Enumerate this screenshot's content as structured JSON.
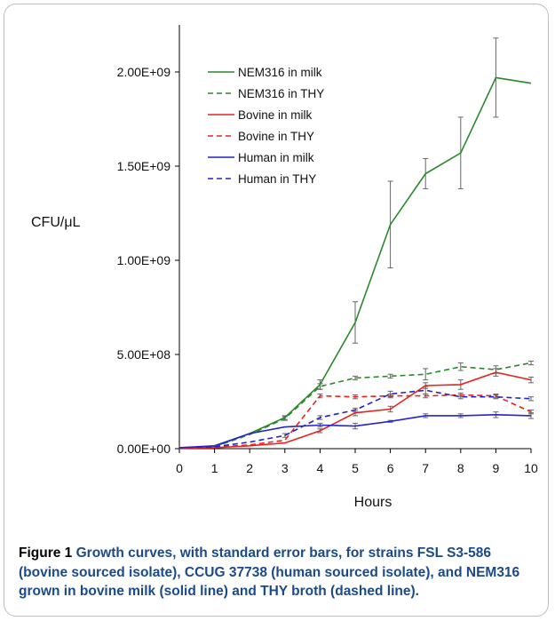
{
  "caption": {
    "label": "Figure 1",
    "text": "Growth curves, with standard error bars, for strains FSL S3-586 (bovine sourced isolate), CCUG 37738 (human sourced isolate), and NEM316 grown in bovine milk (solid line) and THY broth (dashed line)."
  },
  "chart_data": {
    "type": "line",
    "title": "",
    "xlabel": "Hours",
    "ylabel": "CFU/μL",
    "xlim": [
      0,
      10
    ],
    "ylim": [
      0,
      2000000000
    ],
    "x_ticks": [
      "0",
      "1",
      "2",
      "3",
      "4",
      "5",
      "6",
      "7",
      "8",
      "9",
      "10"
    ],
    "y_ticks": [
      "0.00E+00",
      "5.00E+08",
      "1.00E+09",
      "1.50E+09",
      "2.00E+09"
    ],
    "y_tick_values": [
      0,
      500000000,
      1000000000,
      1500000000,
      2000000000
    ],
    "grid": false,
    "legend_position": "top-left",
    "x": [
      0,
      1,
      2,
      3,
      4,
      5,
      6,
      7,
      8,
      9,
      10
    ],
    "series": [
      {
        "name": "NEM316 in milk",
        "color": "#2a8a2a",
        "dash": "solid",
        "values": [
          5000000,
          12000000,
          80000000,
          165000000,
          340000000,
          670000000,
          1190000000,
          1460000000,
          1570000000,
          1970000000,
          1940000000
        ],
        "errors": [
          0,
          0,
          0,
          10000000,
          25000000,
          110000000,
          230000000,
          80000000,
          190000000,
          210000000,
          0
        ]
      },
      {
        "name": "NEM316 in THY",
        "color": "#2a8a2a",
        "dash": "dashed",
        "values": [
          5000000,
          10000000,
          75000000,
          160000000,
          330000000,
          375000000,
          385000000,
          395000000,
          435000000,
          420000000,
          455000000
        ],
        "errors": [
          0,
          0,
          0,
          10000000,
          15000000,
          10000000,
          10000000,
          30000000,
          20000000,
          20000000,
          10000000
        ]
      },
      {
        "name": "Bovine in milk",
        "color": "#e8231f",
        "dash": "solid",
        "values": [
          3000000,
          5000000,
          15000000,
          30000000,
          95000000,
          190000000,
          210000000,
          335000000,
          340000000,
          405000000,
          365000000
        ],
        "errors": [
          0,
          0,
          0,
          0,
          10000000,
          15000000,
          15000000,
          15000000,
          25000000,
          20000000,
          15000000
        ]
      },
      {
        "name": "Bovine in THY",
        "color": "#e8231f",
        "dash": "dashed",
        "values": [
          3000000,
          8000000,
          20000000,
          45000000,
          280000000,
          275000000,
          280000000,
          280000000,
          285000000,
          280000000,
          195000000
        ],
        "errors": [
          0,
          0,
          0,
          0,
          10000000,
          10000000,
          10000000,
          10000000,
          10000000,
          10000000,
          10000000
        ]
      },
      {
        "name": "Human in milk",
        "color": "#2424cc",
        "dash": "solid",
        "values": [
          5000000,
          15000000,
          80000000,
          115000000,
          125000000,
          120000000,
          145000000,
          175000000,
          175000000,
          180000000,
          175000000
        ],
        "errors": [
          0,
          0,
          0,
          0,
          10000000,
          15000000,
          5000000,
          10000000,
          10000000,
          15000000,
          15000000
        ]
      },
      {
        "name": "Human in THY",
        "color": "#2424cc",
        "dash": "dashed",
        "values": [
          5000000,
          10000000,
          35000000,
          70000000,
          165000000,
          205000000,
          290000000,
          310000000,
          275000000,
          275000000,
          265000000
        ],
        "errors": [
          0,
          0,
          0,
          10000000,
          10000000,
          10000000,
          15000000,
          20000000,
          10000000,
          10000000,
          10000000
        ]
      }
    ]
  }
}
